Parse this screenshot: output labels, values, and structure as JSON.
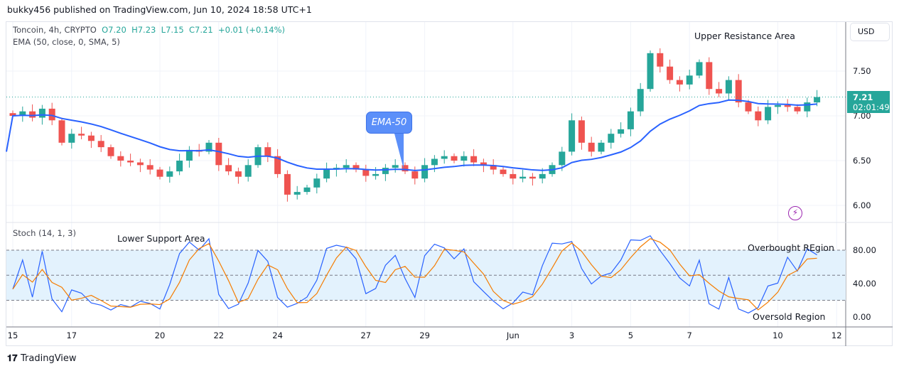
{
  "published": "bukky456 published on TradingView.com, Jun 10, 2024 18:58 UTC+1",
  "legend": {
    "symbol": "Toncoin, 4h, CRYPTO",
    "o": "O7.20",
    "h": "H7.23",
    "l": "L7.15",
    "c": "C7.21",
    "chg": "+0.01 (+0.14%)",
    "ema": "EMA (50, close, 0, SMA, 5)",
    "stoch": "Stoch (14, 1, 3)"
  },
  "currency": "USD",
  "last_price": "7.21",
  "countdown": "02:01:49",
  "annotations": {
    "upper": "Upper Resistance Area",
    "ema": "EMA-50",
    "lower": "Lower Support Area",
    "overbought": "Overbought REgion",
    "oversold": "Oversold Region"
  },
  "logo": "TradingView",
  "colors": {
    "up": "#26a69a",
    "down": "#ef5350",
    "ema": "#2962ff",
    "k": "#2962ff",
    "d": "#f57c00",
    "band": "#e3f2fd"
  },
  "chart_data": {
    "type": "candlestick",
    "title": "Toncoin, 4h, CRYPTO",
    "price_ticks": [
      "7.50",
      "7.00",
      "6.50",
      "6.00"
    ],
    "price_range": [
      5.85,
      7.95
    ],
    "stoch_ticks": [
      "80.00",
      "40.00",
      "0.00"
    ],
    "stoch_levels": [
      80,
      50,
      20
    ],
    "x_ticks": [
      "15",
      "17",
      "20",
      "22",
      "24",
      "27",
      "29",
      "Jun",
      "3",
      "5",
      "7",
      "10",
      "12"
    ],
    "x_tick_days": [
      0,
      2,
      5,
      7,
      9,
      12,
      14,
      17,
      19,
      21,
      23,
      26,
      28
    ],
    "candles_per_day": 3,
    "closes": [
      7.0,
      7.05,
      6.98,
      7.08,
      6.95,
      6.7,
      6.8,
      6.78,
      6.72,
      6.65,
      6.55,
      6.5,
      6.48,
      6.45,
      6.4,
      6.32,
      6.38,
      6.5,
      6.62,
      6.6,
      6.7,
      6.45,
      6.38,
      6.32,
      6.45,
      6.65,
      6.55,
      6.35,
      6.12,
      6.15,
      6.2,
      6.3,
      6.4,
      6.42,
      6.45,
      6.4,
      6.33,
      6.35,
      6.42,
      6.45,
      6.38,
      6.3,
      6.45,
      6.52,
      6.55,
      6.5,
      6.55,
      6.48,
      6.45,
      6.4,
      6.35,
      6.3,
      6.32,
      6.3,
      6.35,
      6.45,
      6.6,
      6.95,
      6.7,
      6.6,
      6.7,
      6.8,
      6.85,
      7.05,
      7.3,
      7.7,
      7.55,
      7.4,
      7.35,
      7.45,
      7.6,
      7.3,
      7.25,
      7.4,
      7.15,
      7.05,
      6.95,
      7.1,
      7.12,
      7.1,
      7.05,
      7.15,
      7.21
    ]
  }
}
